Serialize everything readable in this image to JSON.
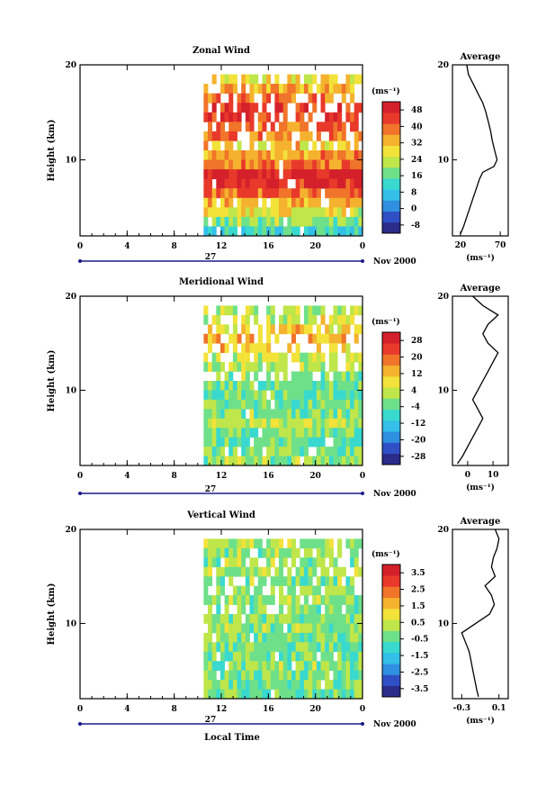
{
  "figure": {
    "xlabel": "Local Time",
    "ylabel": "Height (km)",
    "date_label": "27",
    "month_label": "Nov 2000",
    "avg_title": "Average",
    "unit_label": "(ms⁻¹)"
  },
  "chart_data": [
    {
      "type": "heatmap",
      "title": "Zonal Wind",
      "xlabel": "Local Time",
      "ylabel": "Height (km)",
      "x_ticks": [
        "0",
        "4",
        "8",
        "12",
        "16",
        "20",
        "0"
      ],
      "y_ticks": [
        "20",
        "10"
      ],
      "xlim": [
        0,
        24
      ],
      "ylim": [
        2,
        20
      ],
      "data_start_hour": 10.5,
      "colorbar": {
        "label": "(ms⁻¹)",
        "ticks": [
          "48",
          "40",
          "32",
          "24",
          "16",
          "8",
          "0",
          "-8"
        ]
      },
      "rows": [
        {
          "h": 18.5,
          "v": 28
        },
        {
          "h": 17.5,
          "v": 34
        },
        {
          "h": 16.5,
          "v": 38
        },
        {
          "h": 15.5,
          "v": 44
        },
        {
          "h": 14.5,
          "v": 46
        },
        {
          "h": 13.5,
          "v": 40
        },
        {
          "h": 12.5,
          "v": 38
        },
        {
          "h": 11.5,
          "v": 30
        },
        {
          "h": 10.5,
          "v": 36
        },
        {
          "h": 9.5,
          "v": 40
        },
        {
          "h": 8.5,
          "v": 50
        },
        {
          "h": 7.5,
          "v": 46
        },
        {
          "h": 6.5,
          "v": 40
        },
        {
          "h": 5.5,
          "v": 32
        },
        {
          "h": 4.5,
          "v": 26
        },
        {
          "h": 3.5,
          "v": 20
        },
        {
          "h": 2.5,
          "v": 12
        }
      ],
      "average": {
        "xlim": [
          10,
          80
        ],
        "x_ticks": [
          "20",
          "70"
        ],
        "y_ticks": [
          "20",
          "10"
        ],
        "xlabel": "(ms⁻¹)",
        "profile": [
          {
            "h": 2.2,
            "v": 20
          },
          {
            "h": 3,
            "v": 24
          },
          {
            "h": 4,
            "v": 28
          },
          {
            "h": 5,
            "v": 32
          },
          {
            "h": 6,
            "v": 36
          },
          {
            "h": 7,
            "v": 40
          },
          {
            "h": 8,
            "v": 44
          },
          {
            "h": 8.7,
            "v": 48
          },
          {
            "h": 9.3,
            "v": 62
          },
          {
            "h": 10,
            "v": 66
          },
          {
            "h": 11,
            "v": 63
          },
          {
            "h": 12,
            "v": 60
          },
          {
            "h": 13,
            "v": 58
          },
          {
            "h": 14,
            "v": 55
          },
          {
            "h": 15,
            "v": 52
          },
          {
            "h": 16,
            "v": 48
          },
          {
            "h": 17,
            "v": 42
          },
          {
            "h": 18,
            "v": 36
          },
          {
            "h": 19,
            "v": 30
          },
          {
            "h": 20,
            "v": 28
          }
        ]
      }
    },
    {
      "type": "heatmap",
      "title": "Meridional Wind",
      "xlabel": "Local Time",
      "ylabel": "Height (km)",
      "x_ticks": [
        "0",
        "4",
        "8",
        "12",
        "16",
        "20",
        "0"
      ],
      "y_ticks": [
        "20",
        "10"
      ],
      "xlim": [
        0,
        24
      ],
      "ylim": [
        2,
        20
      ],
      "data_start_hour": 10.5,
      "colorbar": {
        "label": "(ms⁻¹)",
        "ticks": [
          "28",
          "20",
          "12",
          "4",
          "-4",
          "-12",
          "-20",
          "-28"
        ]
      },
      "rows": [
        {
          "h": 18.5,
          "v": 2
        },
        {
          "h": 17.5,
          "v": 6
        },
        {
          "h": 16.5,
          "v": 10
        },
        {
          "h": 15.5,
          "v": 14
        },
        {
          "h": 14.5,
          "v": 10
        },
        {
          "h": 13.5,
          "v": 4
        },
        {
          "h": 12.5,
          "v": 2
        },
        {
          "h": 11.5,
          "v": 0
        },
        {
          "h": 10.5,
          "v": -2
        },
        {
          "h": 9.5,
          "v": -4
        },
        {
          "h": 8.5,
          "v": -2
        },
        {
          "h": 7.5,
          "v": 0
        },
        {
          "h": 6.5,
          "v": 2
        },
        {
          "h": 5.5,
          "v": -2
        },
        {
          "h": 4.5,
          "v": -4
        },
        {
          "h": 3.5,
          "v": -2
        },
        {
          "h": 2.5,
          "v": 0
        }
      ],
      "average": {
        "xlim": [
          -6,
          16
        ],
        "x_ticks": [
          "0",
          "10"
        ],
        "y_ticks": [
          "20",
          "10"
        ],
        "xlabel": "(ms⁻¹)",
        "profile": [
          {
            "h": 2.2,
            "v": -4
          },
          {
            "h": 3,
            "v": -2
          },
          {
            "h": 4,
            "v": 0
          },
          {
            "h": 5,
            "v": 2
          },
          {
            "h": 6,
            "v": 4
          },
          {
            "h": 7,
            "v": 6
          },
          {
            "h": 8,
            "v": 4
          },
          {
            "h": 9,
            "v": 2
          },
          {
            "h": 10,
            "v": 4
          },
          {
            "h": 11,
            "v": 6
          },
          {
            "h": 12,
            "v": 8
          },
          {
            "h": 13,
            "v": 10
          },
          {
            "h": 14,
            "v": 12
          },
          {
            "h": 15,
            "v": 8
          },
          {
            "h": 16,
            "v": 6
          },
          {
            "h": 17,
            "v": 8
          },
          {
            "h": 18,
            "v": 12
          },
          {
            "h": 19,
            "v": 6
          },
          {
            "h": 20,
            "v": 2
          }
        ]
      }
    },
    {
      "type": "heatmap",
      "title": "Vertical Wind",
      "xlabel": "Local Time",
      "ylabel": "Height (km)",
      "x_ticks": [
        "0",
        "4",
        "8",
        "12",
        "16",
        "20",
        "0"
      ],
      "y_ticks": [
        "20",
        "10"
      ],
      "xlim": [
        0,
        24
      ],
      "ylim": [
        2,
        20
      ],
      "data_start_hour": 10.5,
      "colorbar": {
        "label": "(ms⁻¹)",
        "ticks": [
          "3.5",
          "2.5",
          "1.5",
          "0.5",
          "-0.5",
          "-1.5",
          "-2.5",
          "-3.5"
        ]
      },
      "rows": [
        {
          "h": 18.5,
          "v": 0.2
        },
        {
          "h": 17.5,
          "v": 0.1
        },
        {
          "h": 16.5,
          "v": 0.0
        },
        {
          "h": 15.5,
          "v": 0.1
        },
        {
          "h": 14.5,
          "v": 0.0
        },
        {
          "h": 13.5,
          "v": -0.1
        },
        {
          "h": 12.5,
          "v": 0.0
        },
        {
          "h": 11.5,
          "v": -0.1
        },
        {
          "h": 10.5,
          "v": -0.2
        },
        {
          "h": 9.5,
          "v": -0.1
        },
        {
          "h": 8.5,
          "v": -0.2
        },
        {
          "h": 7.5,
          "v": -0.3
        },
        {
          "h": 6.5,
          "v": -0.2
        },
        {
          "h": 5.5,
          "v": -0.1
        },
        {
          "h": 4.5,
          "v": -0.2
        },
        {
          "h": 3.5,
          "v": -0.1
        },
        {
          "h": 2.5,
          "v": -0.2
        }
      ],
      "average": {
        "xlim": [
          -0.4,
          0.2
        ],
        "x_ticks": [
          "-0.3",
          "0.1"
        ],
        "y_ticks": [
          "20",
          "10"
        ],
        "xlabel": "(ms⁻¹)",
        "profile": [
          {
            "h": 2.2,
            "v": -0.12
          },
          {
            "h": 3,
            "v": -0.14
          },
          {
            "h": 4,
            "v": -0.16
          },
          {
            "h": 5,
            "v": -0.18
          },
          {
            "h": 6,
            "v": -0.2
          },
          {
            "h": 7,
            "v": -0.22
          },
          {
            "h": 8,
            "v": -0.26
          },
          {
            "h": 9,
            "v": -0.3
          },
          {
            "h": 10,
            "v": -0.15
          },
          {
            "h": 11,
            "v": 0.0
          },
          {
            "h": 12,
            "v": 0.05
          },
          {
            "h": 13,
            "v": 0.02
          },
          {
            "h": 14,
            "v": -0.05
          },
          {
            "h": 15,
            "v": 0.06
          },
          {
            "h": 16,
            "v": 0.02
          },
          {
            "h": 17,
            "v": 0.04
          },
          {
            "h": 18,
            "v": 0.08
          },
          {
            "h": 19,
            "v": 0.1
          },
          {
            "h": 20,
            "v": 0.06
          }
        ]
      }
    }
  ]
}
